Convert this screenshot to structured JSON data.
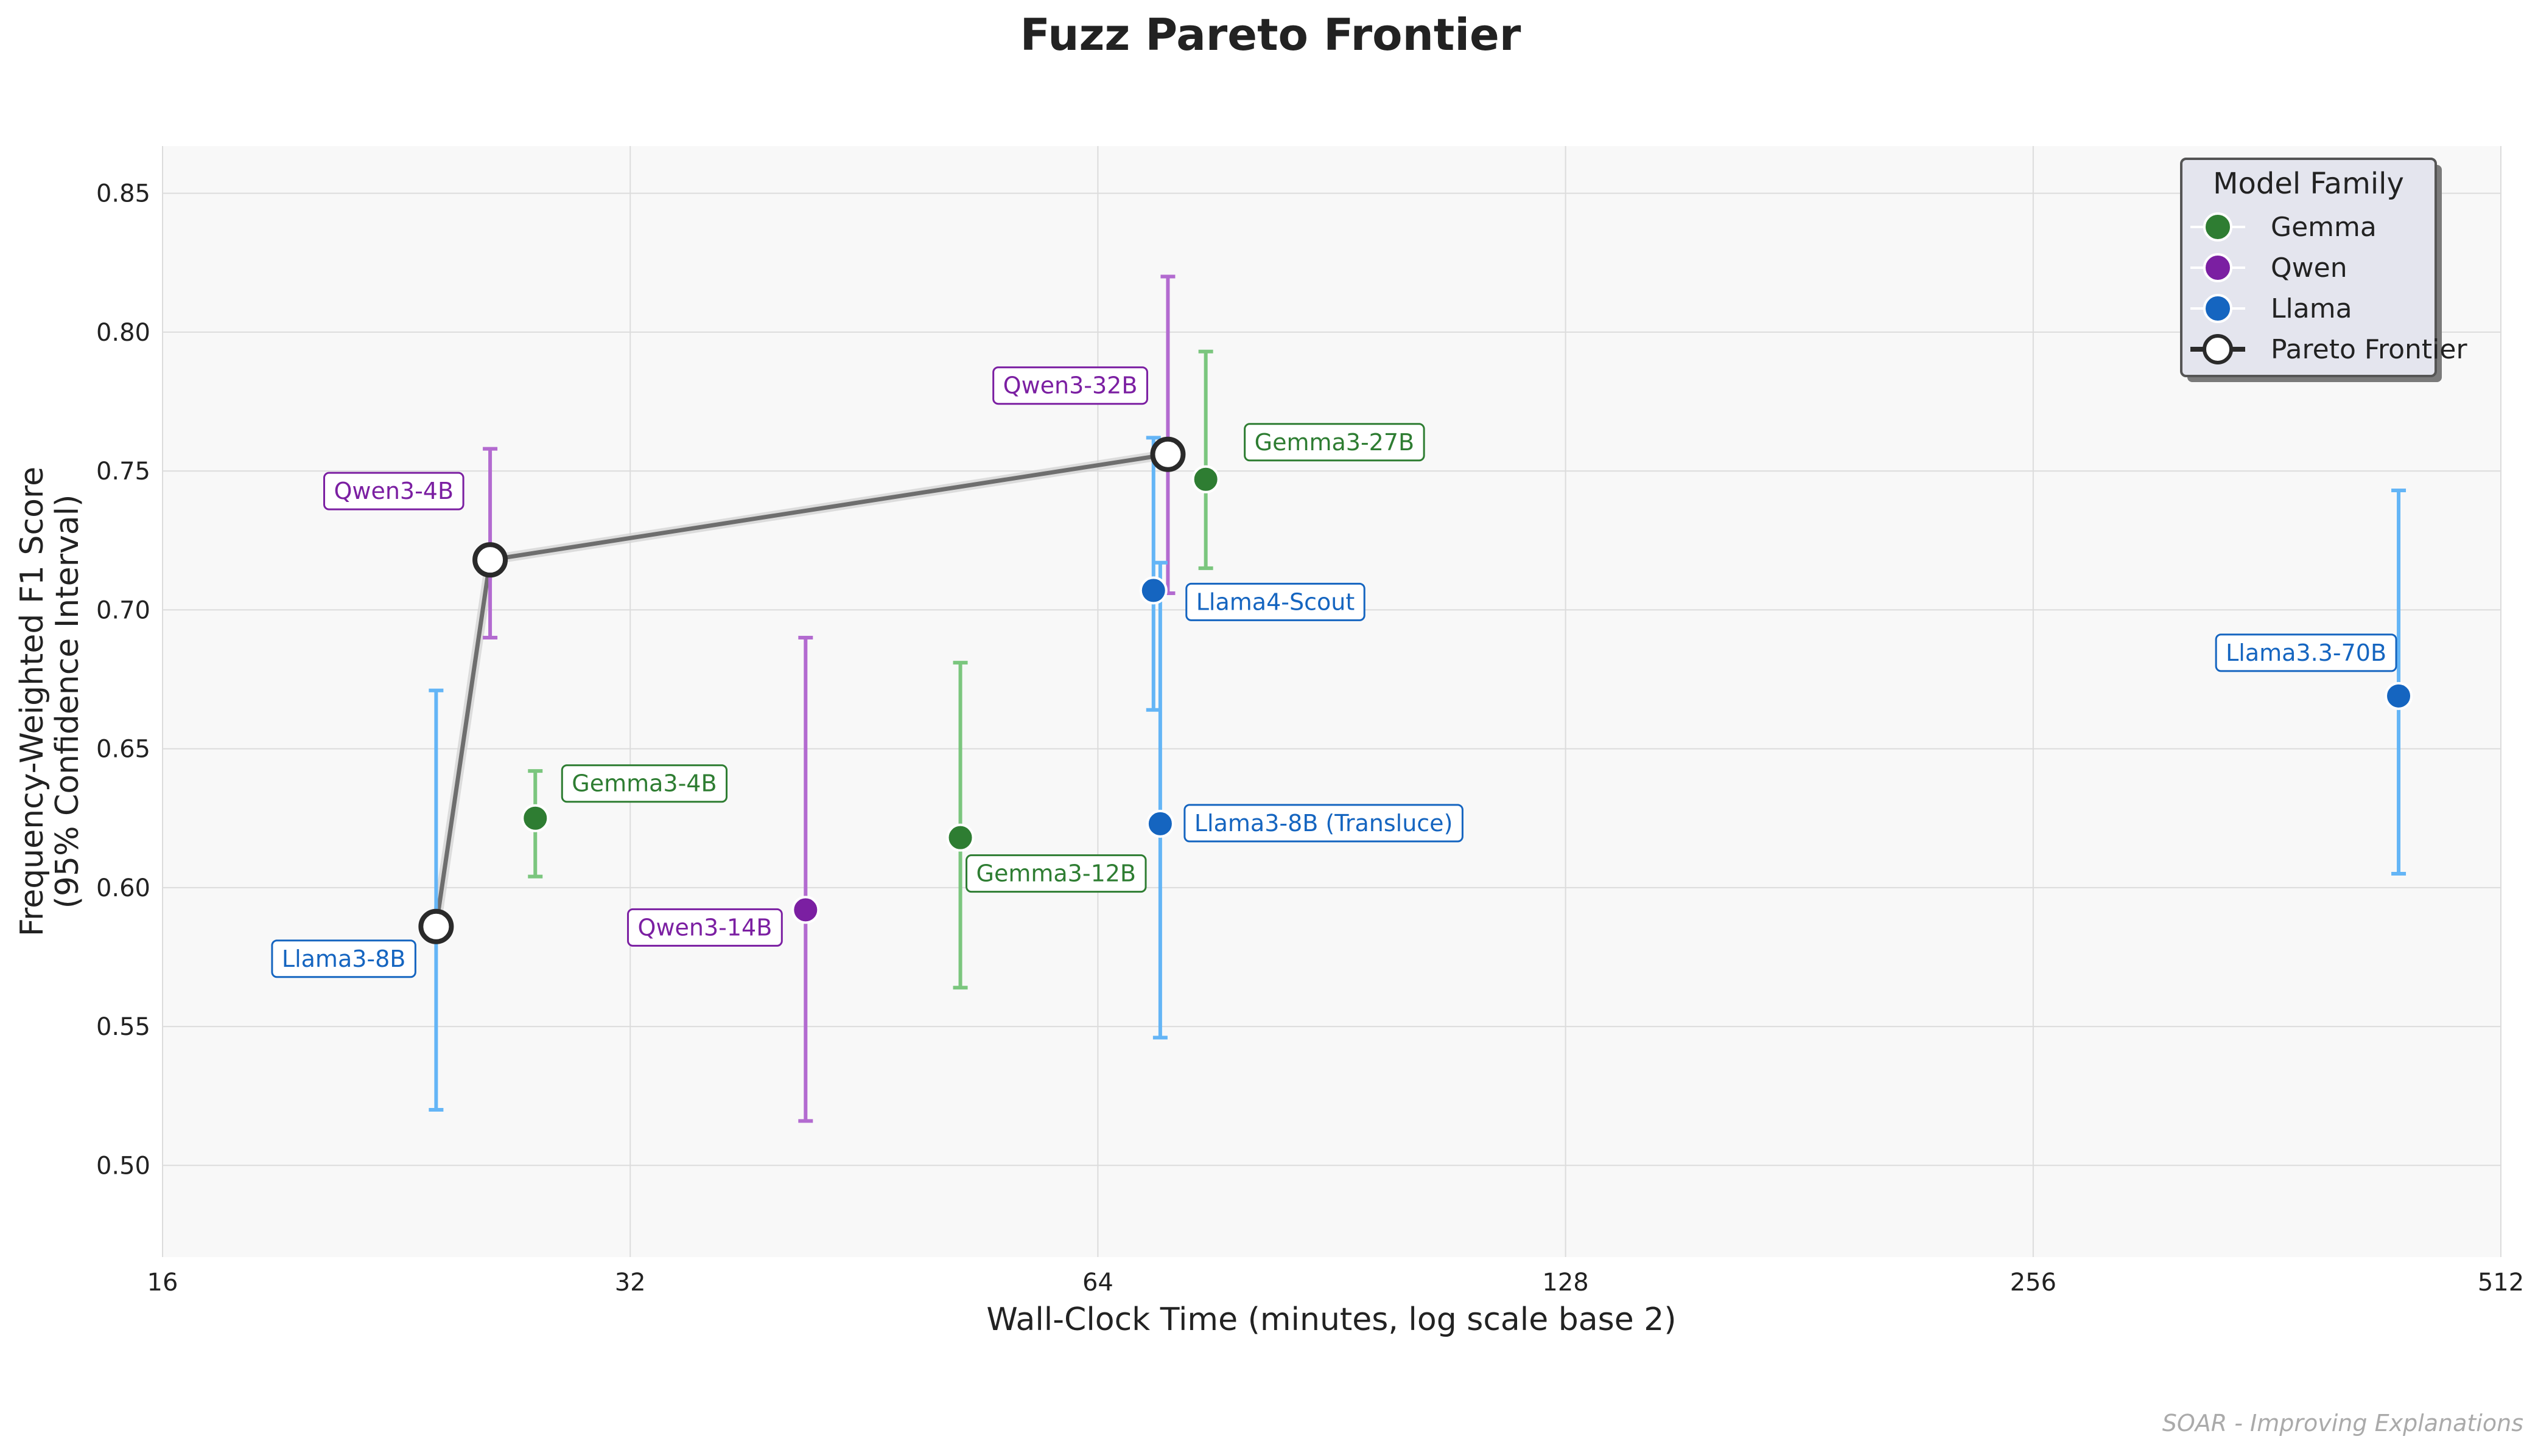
{
  "chart_data": {
    "type": "scatter",
    "title": "Fuzz Pareto Frontier",
    "xlabel": "Wall-Clock Time (minutes, log scale base 2)",
    "ylabel_line1": "Frequency-Weighted F1 Score",
    "ylabel_line2": "(95% Confidence Interval)",
    "x_scale": "log2",
    "xlim": [
      16,
      512
    ],
    "ylim": [
      0.467,
      0.867
    ],
    "x_ticks": [
      "16",
      "32",
      "64",
      "128",
      "256",
      "512"
    ],
    "y_ticks": [
      "0.50",
      "0.55",
      "0.60",
      "0.65",
      "0.70",
      "0.75",
      "0.80",
      "0.85"
    ],
    "grid": true,
    "legend_title": "Model Family",
    "legend_position": "top-right",
    "families": [
      {
        "name": "Gemma",
        "color": "#2e7d32",
        "err_color": "#7bc67e",
        "label_color": "#2e7d32"
      },
      {
        "name": "Qwen",
        "color": "#7b1fa2",
        "err_color": "#b36bd0",
        "label_color": "#7b1fa2"
      },
      {
        "name": "Llama",
        "color": "#1565c0",
        "err_color": "#64b5f6",
        "label_color": "#1565c0"
      }
    ],
    "pareto_label": "Pareto Frontier",
    "points": [
      {
        "label": "Gemma3-4B",
        "family": "Gemma",
        "x": 27.8,
        "y": 0.625,
        "lo": 0.604,
        "hi": 0.642,
        "pareto": false
      },
      {
        "label": "Gemma3-12B",
        "family": "Gemma",
        "x": 52.2,
        "y": 0.618,
        "lo": 0.564,
        "hi": 0.681,
        "pareto": false
      },
      {
        "label": "Gemma3-27B",
        "family": "Gemma",
        "x": 75.1,
        "y": 0.747,
        "lo": 0.715,
        "hi": 0.793,
        "pareto": false
      },
      {
        "label": "Qwen3-4B",
        "family": "Qwen",
        "x": 26.0,
        "y": 0.718,
        "lo": 0.69,
        "hi": 0.758,
        "pareto": true
      },
      {
        "label": "Qwen3-14B",
        "family": "Qwen",
        "x": 41.5,
        "y": 0.592,
        "lo": 0.516,
        "hi": 0.69,
        "pareto": false
      },
      {
        "label": "Qwen3-32B",
        "family": "Qwen",
        "x": 71.0,
        "y": 0.756,
        "lo": 0.706,
        "hi": 0.82,
        "pareto": true
      },
      {
        "label": "Llama3-8B",
        "family": "Llama",
        "x": 24.0,
        "y": 0.586,
        "lo": 0.52,
        "hi": 0.671,
        "pareto": true
      },
      {
        "label": "Llama4-Scout",
        "family": "Llama",
        "x": 69.5,
        "y": 0.707,
        "lo": 0.664,
        "hi": 0.762,
        "pareto": false
      },
      {
        "label": "Llama3-8B (Transluce)",
        "family": "Llama",
        "x": 70.2,
        "y": 0.623,
        "lo": 0.546,
        "hi": 0.717,
        "pareto": false
      },
      {
        "label": "Llama3.3-70B",
        "family": "Llama",
        "x": 440.0,
        "y": 0.669,
        "lo": 0.605,
        "hi": 0.743,
        "pareto": false
      }
    ],
    "pareto_order": [
      "Llama3-8B",
      "Qwen3-4B",
      "Qwen3-32B"
    ]
  },
  "watermark": "SOAR - Improving Explanations"
}
